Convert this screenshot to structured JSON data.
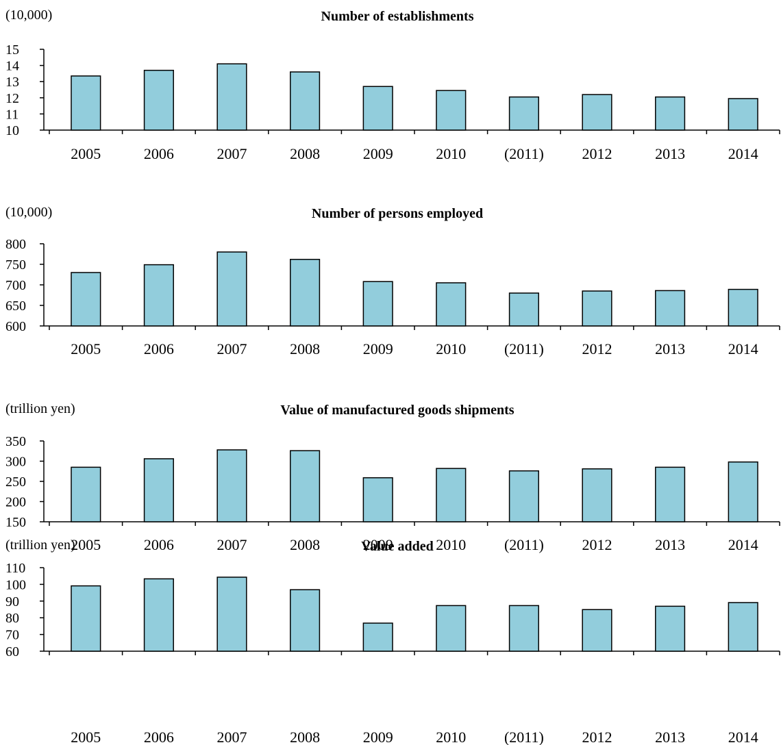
{
  "chart_data": [
    {
      "type": "bar",
      "title": "Number of establishments",
      "unit": "(10,000)",
      "categories": [
        "2005",
        "2006",
        "2007",
        "2008",
        "2009",
        "2010",
        "(2011)",
        "2012",
        "2013",
        "2014"
      ],
      "values": [
        13.35,
        13.7,
        14.1,
        13.6,
        12.7,
        12.45,
        12.05,
        12.2,
        12.05,
        11.95
      ],
      "ylim": [
        10,
        15
      ],
      "yticks": [
        "10",
        "11",
        "12",
        "13",
        "14",
        "15"
      ],
      "tick_values": [
        10,
        11,
        12,
        13,
        14,
        15
      ],
      "bar_color": "#92CDDC",
      "grid": false
    },
    {
      "type": "bar",
      "title": "Number of persons employed",
      "unit": "(10,000)",
      "categories": [
        "2005",
        "2006",
        "2007",
        "2008",
        "2009",
        "2010",
        "(2011)",
        "2012",
        "2013",
        "2014"
      ],
      "values": [
        730,
        749,
        780,
        762,
        708,
        705,
        680,
        685,
        686,
        689
      ],
      "ylim": [
        600,
        800
      ],
      "yticks": [
        "600",
        "650",
        "700",
        "750",
        "800"
      ],
      "tick_values": [
        600,
        650,
        700,
        750,
        800
      ],
      "bar_color": "#92CDDC",
      "grid": false
    },
    {
      "type": "bar",
      "title": "Value of manufactured goods shipments",
      "unit": "(trillion yen)",
      "categories": [
        "2005",
        "2006",
        "2007",
        "2008",
        "2009",
        "2010",
        "(2011)",
        "2012",
        "2013",
        "2014"
      ],
      "values": [
        285,
        306,
        328,
        326,
        259,
        282,
        276,
        281,
        285,
        298
      ],
      "ylim": [
        150,
        350
      ],
      "yticks": [
        "150",
        "200",
        "250",
        "300",
        "350"
      ],
      "tick_values": [
        150,
        200,
        250,
        300,
        350
      ],
      "bar_color": "#92CDDC",
      "grid": false
    },
    {
      "type": "bar",
      "title": "Value added",
      "unit": "(trillion yen)",
      "categories": [
        "2005",
        "2006",
        "2007",
        "2008",
        "2009",
        "2010",
        "(2011)",
        "2012",
        "2013",
        "2014"
      ],
      "values": [
        99.1,
        103.3,
        104.3,
        96.8,
        76.8,
        87.3,
        87.3,
        84.9,
        86.9,
        89.1
      ],
      "ylim": [
        60,
        110
      ],
      "yticks": [
        "60",
        "70",
        "80",
        "90",
        "100",
        "110"
      ],
      "tick_values": [
        60,
        70,
        80,
        90,
        100,
        110
      ],
      "bar_color": "#92CDDC",
      "grid": false
    }
  ]
}
